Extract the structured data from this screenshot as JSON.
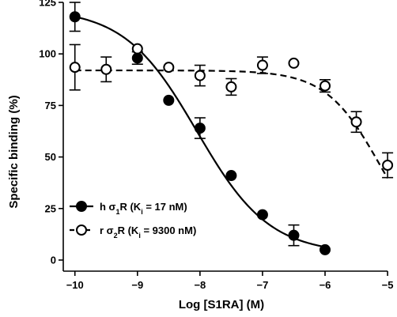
{
  "chart_data": {
    "type": "scatter",
    "title": "",
    "xlabel": "Log [S1RA] (M)",
    "ylabel": "Specific binding (%)",
    "xlim": [
      -10.3,
      -4.9
    ],
    "ylim": [
      -5,
      125
    ],
    "x_ticks": [
      -10,
      -9,
      -8,
      -7,
      -6,
      -5
    ],
    "x_tick_labels": [
      "−10",
      "−9",
      "−8",
      "−7",
      "−6",
      "−5"
    ],
    "y_ticks": [
      0,
      25,
      50,
      75,
      100,
      125
    ],
    "y_tick_labels": [
      "0",
      "25",
      "50",
      "75",
      "100",
      "125"
    ],
    "grid": false,
    "legend_position": "bottom-left",
    "series": [
      {
        "name": "h σ1R (Ki = 17 nM)",
        "legend_parts": {
          "prefix": "h σ",
          "sub1": "1",
          "mid": "R (K",
          "sub2": "i",
          "suffix": " = 17 nM)"
        },
        "marker": "filled-circle",
        "line_style": "solid",
        "color": "#000000",
        "x": [
          -10,
          -9,
          -8.5,
          -8,
          -7.5,
          -7,
          -6.5,
          -6
        ],
        "y": [
          118,
          98,
          77.5,
          64,
          41,
          22,
          12,
          5
        ],
        "error": [
          7,
          3,
          0,
          5,
          0,
          0,
          5,
          0
        ],
        "fit": {
          "top": 122,
          "bottom": 3,
          "log_ic50": -8.05,
          "hill": -0.75
        }
      },
      {
        "name": "r σ2R (Ki = 9300 nM)",
        "legend_parts": {
          "prefix": "r σ",
          "sub1": "2",
          "mid": "R (K",
          "sub2": "i",
          "suffix": " = 9300 nM)"
        },
        "marker": "open-circle",
        "line_style": "dashed",
        "color": "#000000",
        "x": [
          -10,
          -9.5,
          -9,
          -8.5,
          -8,
          -7.5,
          -7,
          -6.5,
          -6,
          -5.5,
          -5
        ],
        "y": [
          93.5,
          92.5,
          102.5,
          93.5,
          89.5,
          84,
          94.5,
          95.5,
          84.5,
          67,
          46
        ],
        "error": [
          11,
          6,
          0,
          0,
          5,
          4,
          4,
          0,
          3,
          5,
          6
        ],
        "fit": {
          "top": 92,
          "bottom": 0,
          "log_ic50": -5.12,
          "hill": -1.0
        }
      }
    ]
  }
}
